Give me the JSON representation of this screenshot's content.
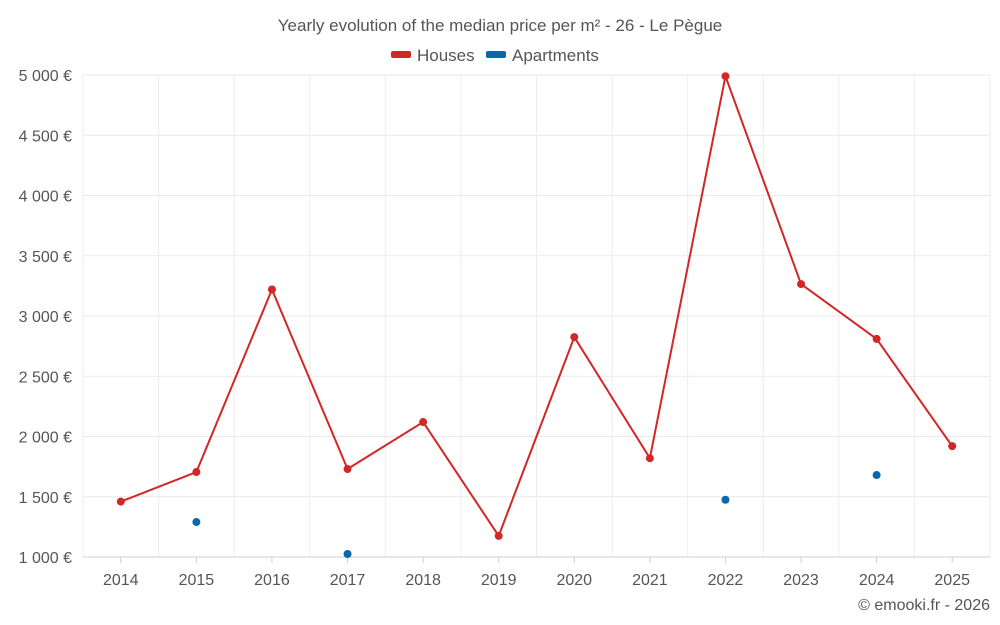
{
  "chart_data": {
    "type": "line",
    "title": "Yearly evolution of the median price per m² - 26 - Le Pègue",
    "categories": [
      "2014",
      "2015",
      "2016",
      "2017",
      "2018",
      "2019",
      "2020",
      "2021",
      "2022",
      "2023",
      "2024",
      "2025"
    ],
    "y_ticks": [
      "1 000 €",
      "1 500 €",
      "2 000 €",
      "2 500 €",
      "3 000 €",
      "3 500 €",
      "4 000 €",
      "4 500 €",
      "5 000 €"
    ],
    "ylim": [
      1000,
      5000
    ],
    "grid": true,
    "legend_position": "top-center",
    "series": [
      {
        "name": "Houses",
        "color": "#d32626",
        "values": [
          1460,
          1705,
          3220,
          1730,
          2120,
          1175,
          2825,
          1820,
          4990,
          3265,
          2810,
          1920
        ]
      },
      {
        "name": "Apartments",
        "color": "#0a68a8",
        "values": [
          null,
          1290,
          null,
          1025,
          null,
          null,
          null,
          null,
          1475,
          null,
          1680,
          null
        ]
      }
    ]
  },
  "credit": "© emooki.fr - 2026"
}
